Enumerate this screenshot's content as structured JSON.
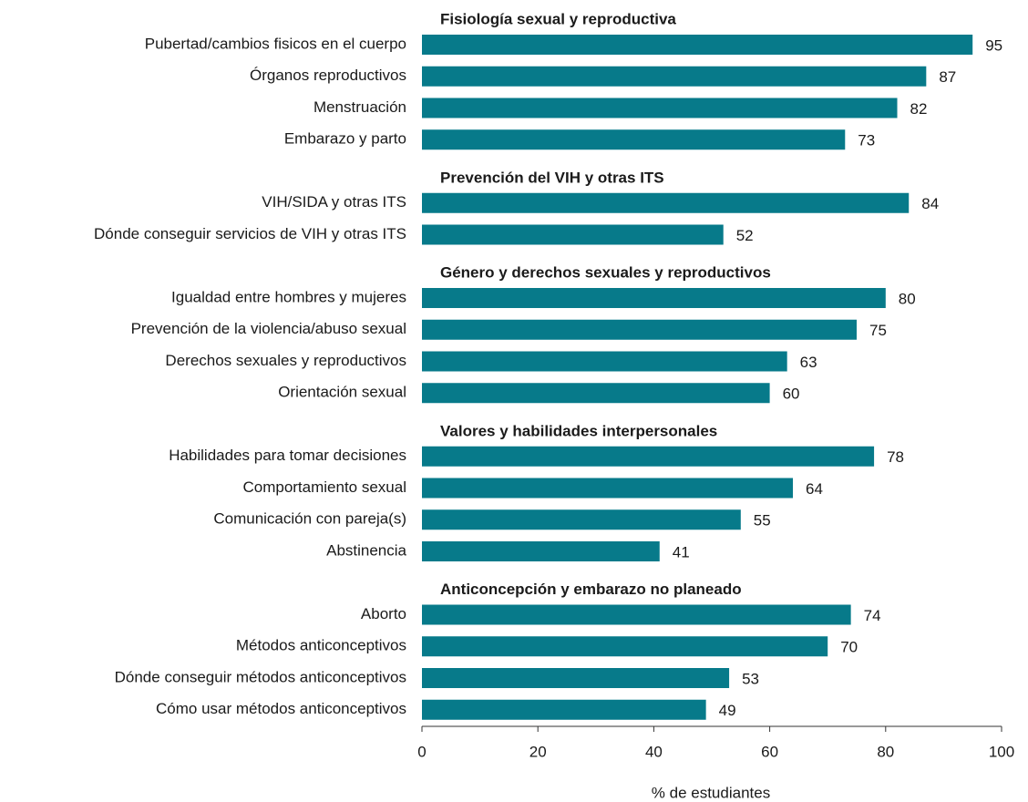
{
  "chart_data": {
    "type": "bar",
    "color": "#077a8a",
    "xlabel": "% de estudiantes",
    "xlim": [
      0,
      100
    ],
    "xticks": [
      0,
      20,
      40,
      60,
      80,
      100
    ],
    "groups": [
      {
        "name": "Fisiología sexual y reproductiva",
        "categories": [
          "Pubertad/cambios fisicos en el cuerpo",
          "Órganos reproductivos",
          "Menstruación",
          "Embarazo y parto"
        ],
        "values": [
          95,
          87,
          82,
          73
        ]
      },
      {
        "name": "Prevención del VIH y otras ITS",
        "categories": [
          "VIH/SIDA y otras ITS",
          "Dónde conseguir servicios de VIH y otras ITS"
        ],
        "values": [
          84,
          52
        ]
      },
      {
        "name": "Género y derechos sexuales y reproductivos",
        "categories": [
          "Igualdad entre hombres y mujeres",
          "Prevención de la violencia/abuso sexual",
          "Derechos sexuales y reproductivos",
          "Orientación sexual"
        ],
        "values": [
          80,
          75,
          63,
          60
        ]
      },
      {
        "name": "Valores y habilidades interpersonales",
        "categories": [
          "Habilidades para tomar decisiones",
          "Comportamiento sexual",
          "Comunicación con pareja(s)",
          "Abstinencia"
        ],
        "values": [
          78,
          64,
          55,
          41
        ]
      },
      {
        "name": "Anticoncepción y embarazo no planeado",
        "categories": [
          "Aborto",
          "Métodos anticonceptivos",
          "Dónde conseguir métodos anticonceptivos",
          "Cómo usar métodos anticonceptivos"
        ],
        "values": [
          74,
          70,
          53,
          49
        ]
      }
    ]
  }
}
